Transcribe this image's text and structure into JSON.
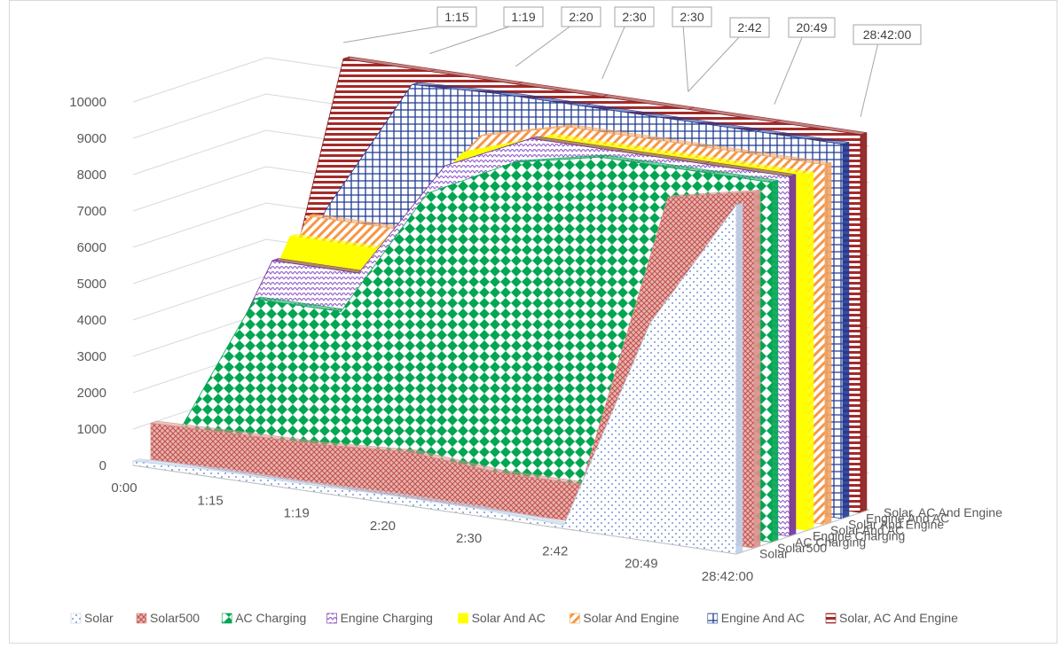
{
  "chart_data": {
    "type": "area",
    "variant": "3d-area",
    "title": "",
    "xlabel": "",
    "ylabel": "",
    "categories": [
      "0:00",
      "1:15",
      "1:19",
      "2:20",
      "2:30",
      "2:42",
      "20:49",
      "28:42:00"
    ],
    "ylim": [
      0,
      10000
    ],
    "yticks": [
      0,
      1000,
      2000,
      3000,
      4000,
      5000,
      6000,
      7000,
      8000,
      9000,
      10000
    ],
    "grid": true,
    "legend_position": "bottom",
    "series": [
      {
        "name": "Solar",
        "color": "#bcd0ea",
        "pattern": "dots",
        "values": [
          120,
          200,
          180,
          220,
          200,
          100,
          6000,
          9600
        ]
      },
      {
        "name": "Solar500",
        "color": "#d88f8a",
        "pattern": "crosshatch",
        "values": [
          1000,
          1050,
          1100,
          1250,
          1050,
          1050,
          9300,
          9800
        ]
      },
      {
        "name": "AC Charging",
        "color": "#00a651",
        "pattern": "diamonds",
        "values": [
          100,
          4600,
          4600,
          8200,
          9400,
          9900,
          9900,
          9900
        ]
      },
      {
        "name": "Engine Charging",
        "color": "#7030a0",
        "pattern": "zigzag",
        "values": [
          300,
          5500,
          5500,
          8800,
          9900,
          9900,
          9900,
          9900
        ]
      },
      {
        "name": "Solar And AC",
        "color": "#ffff00",
        "pattern": "solid",
        "values": [
          300,
          6000,
          6000,
          9000,
          9800,
          9800,
          9800,
          9800
        ]
      },
      {
        "name": "Solar And Engine",
        "color": "#f4a460",
        "pattern": "diagonal",
        "values": [
          300,
          6400,
          6400,
          9300,
          9900,
          9900,
          9900,
          9900
        ]
      },
      {
        "name": "Engine And AC",
        "color": "#1f3a93",
        "pattern": "grid",
        "values": [
          300,
          6400,
          10200,
          10300,
          10300,
          10300,
          10300,
          10300
        ]
      },
      {
        "name": "Solar, AC And Engine",
        "color": "#8b1a1a",
        "pattern": "stripes",
        "values": [
          300,
          10400,
          10400,
          10400,
          10400,
          10400,
          10400,
          10400
        ]
      }
    ],
    "callouts": [
      "1:15",
      "1:19",
      "2:20",
      "2:30",
      "2:30",
      "2:42",
      "20:49",
      "28:42:00"
    ]
  }
}
